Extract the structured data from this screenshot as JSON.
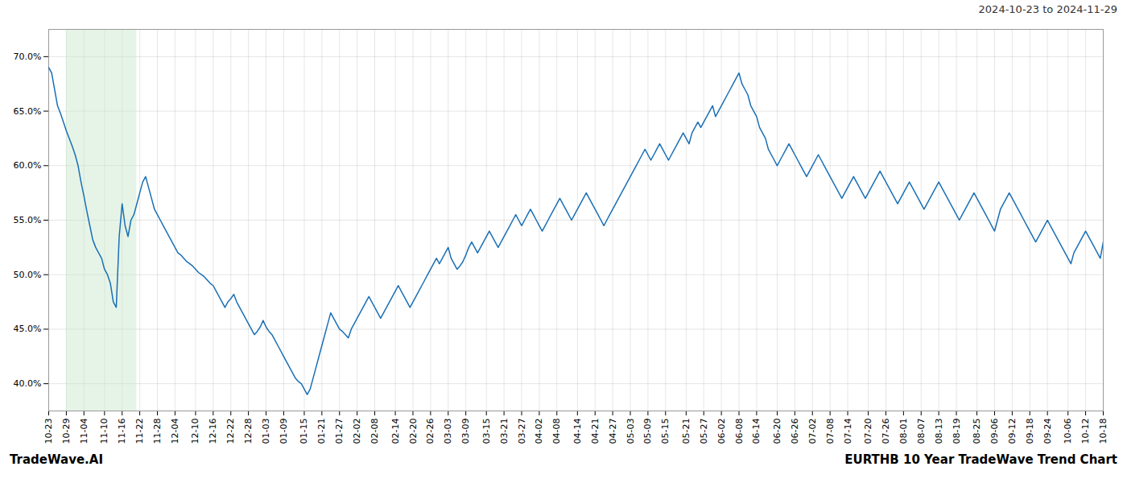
{
  "chart_data": {
    "type": "line",
    "title": "2024-10-23 to 2024-11-29",
    "captions": [
      "TradeWave.AI",
      "EURTHB 10 Year TradeWave Trend Chart"
    ],
    "color": "#1a6fb5",
    "grid": true,
    "ylim": [
      37.5,
      72.5
    ],
    "yticks": [
      {
        "value": 40.0,
        "label": "40.0%"
      },
      {
        "value": 45.0,
        "label": "45.0%"
      },
      {
        "value": 50.0,
        "label": "50.0%"
      },
      {
        "value": 55.0,
        "label": "55.0%"
      },
      {
        "value": 60.0,
        "label": "60.0%"
      },
      {
        "value": 65.0,
        "label": "65.0%"
      },
      {
        "value": 70.0,
        "label": "70.0%"
      }
    ],
    "shade": {
      "range": [
        6,
        30
      ],
      "color": "#c8e6c9"
    },
    "categories": [
      "10-23",
      null,
      null,
      null,
      null,
      null,
      "10-29",
      null,
      null,
      null,
      null,
      null,
      "11-04",
      null,
      null,
      null,
      null,
      null,
      null,
      "11-10",
      null,
      null,
      null,
      null,
      null,
      "11-16",
      null,
      null,
      null,
      null,
      null,
      "11-22",
      null,
      null,
      null,
      null,
      null,
      "11-28",
      null,
      null,
      null,
      null,
      null,
      "12-04",
      null,
      null,
      null,
      null,
      null,
      null,
      "12-10",
      null,
      null,
      null,
      null,
      null,
      "12-16",
      null,
      null,
      null,
      null,
      null,
      "12-22",
      null,
      null,
      null,
      null,
      null,
      "12-28",
      null,
      null,
      null,
      null,
      null,
      "01-03",
      null,
      null,
      null,
      null,
      null,
      "01-09",
      null,
      null,
      null,
      null,
      null,
      null,
      "01-15",
      null,
      null,
      null,
      null,
      null,
      "01-21",
      null,
      null,
      null,
      null,
      null,
      "01-27",
      null,
      null,
      null,
      null,
      null,
      "02-02",
      null,
      null,
      null,
      null,
      null,
      "02-08",
      null,
      null,
      null,
      null,
      null,
      null,
      "02-14",
      null,
      null,
      null,
      null,
      null,
      "02-20",
      null,
      null,
      null,
      null,
      null,
      "02-26",
      null,
      null,
      null,
      null,
      null,
      "03-03",
      null,
      null,
      null,
      null,
      null,
      "03-09",
      null,
      null,
      null,
      null,
      null,
      null,
      "03-15",
      null,
      null,
      null,
      null,
      null,
      "03-21",
      null,
      null,
      null,
      null,
      null,
      "03-27",
      null,
      null,
      null,
      null,
      null,
      "04-02",
      null,
      null,
      null,
      null,
      null,
      "04-08",
      null,
      null,
      null,
      null,
      null,
      null,
      "04-14",
      null,
      null,
      null,
      null,
      null,
      "04-21",
      null,
      null,
      null,
      null,
      null,
      "04-27",
      null,
      null,
      null,
      null,
      null,
      "05-03",
      null,
      null,
      null,
      null,
      null,
      "05-09",
      null,
      null,
      null,
      null,
      null,
      "05-15",
      null,
      null,
      null,
      null,
      null,
      null,
      "05-21",
      null,
      null,
      null,
      null,
      null,
      "05-27",
      null,
      null,
      null,
      null,
      null,
      "06-02",
      null,
      null,
      null,
      null,
      null,
      "06-08",
      null,
      null,
      null,
      null,
      null,
      "06-14",
      null,
      null,
      null,
      null,
      null,
      null,
      "06-20",
      null,
      null,
      null,
      null,
      null,
      "06-26",
      null,
      null,
      null,
      null,
      null,
      "07-02",
      null,
      null,
      null,
      null,
      null,
      "07-08",
      null,
      null,
      null,
      null,
      null,
      "07-14",
      null,
      null,
      null,
      null,
      null,
      null,
      "07-20",
      null,
      null,
      null,
      null,
      null,
      "07-26",
      null,
      null,
      null,
      null,
      null,
      "08-01",
      null,
      null,
      null,
      null,
      null,
      "08-07",
      null,
      null,
      null,
      null,
      null,
      "08-13",
      null,
      null,
      null,
      null,
      null,
      "08-19",
      null,
      null,
      null,
      null,
      null,
      null,
      "08-25",
      null,
      null,
      null,
      null,
      null,
      "09-06",
      null,
      null,
      null,
      null,
      null,
      "09-12",
      null,
      null,
      null,
      null,
      null,
      "09-18",
      null,
      null,
      null,
      null,
      null,
      "09-24",
      null,
      null,
      null,
      null,
      null,
      null,
      "10-06",
      null,
      null,
      null,
      null,
      null,
      "10-12",
      null,
      null,
      null,
      null,
      null,
      "10-18"
    ],
    "values": [
      69.0,
      68.5,
      67.0,
      65.5,
      64.8,
      64.0,
      63.2,
      62.5,
      61.8,
      61.0,
      60.0,
      58.5,
      57.2,
      55.8,
      54.5,
      53.2,
      52.5,
      52.0,
      51.5,
      50.5,
      50.0,
      49.2,
      47.5,
      47.0,
      53.5,
      56.5,
      54.5,
      53.5,
      55.0,
      55.5,
      56.5,
      57.5,
      58.5,
      59.0,
      58.0,
      57.0,
      56.0,
      55.5,
      55.0,
      54.5,
      54.0,
      53.5,
      53.0,
      52.5,
      52.0,
      51.8,
      51.5,
      51.2,
      51.0,
      50.8,
      50.5,
      50.2,
      50.0,
      49.8,
      49.5,
      49.2,
      49.0,
      48.5,
      48.0,
      47.5,
      47.0,
      47.5,
      47.8,
      48.2,
      47.5,
      47.0,
      46.5,
      46.0,
      45.5,
      45.0,
      44.5,
      44.8,
      45.2,
      45.8,
      45.2,
      44.8,
      44.5,
      44.0,
      43.5,
      43.0,
      42.5,
      42.0,
      41.5,
      41.0,
      40.5,
      40.2,
      40.0,
      39.5,
      39.0,
      39.5,
      40.5,
      41.5,
      42.5,
      43.5,
      44.5,
      45.5,
      46.5,
      46.0,
      45.5,
      45.0,
      44.8,
      44.5,
      44.2,
      45.0,
      45.5,
      46.0,
      46.5,
      47.0,
      47.5,
      48.0,
      47.5,
      47.0,
      46.5,
      46.0,
      46.5,
      47.0,
      47.5,
      48.0,
      48.5,
      49.0,
      48.5,
      48.0,
      47.5,
      47.0,
      47.5,
      48.0,
      48.5,
      49.0,
      49.5,
      50.0,
      50.5,
      51.0,
      51.5,
      51.0,
      51.5,
      52.0,
      52.5,
      51.5,
      51.0,
      50.5,
      50.8,
      51.2,
      51.8,
      52.5,
      53.0,
      52.5,
      52.0,
      52.5,
      53.0,
      53.5,
      54.0,
      53.5,
      53.0,
      52.5,
      53.0,
      53.5,
      54.0,
      54.5,
      55.0,
      55.5,
      55.0,
      54.5,
      55.0,
      55.5,
      56.0,
      55.5,
      55.0,
      54.5,
      54.0,
      54.5,
      55.0,
      55.5,
      56.0,
      56.5,
      57.0,
      56.5,
      56.0,
      55.5,
      55.0,
      55.5,
      56.0,
      56.5,
      57.0,
      57.5,
      57.0,
      56.5,
      56.0,
      55.5,
      55.0,
      54.5,
      55.0,
      55.5,
      56.0,
      56.5,
      57.0,
      57.5,
      58.0,
      58.5,
      59.0,
      59.5,
      60.0,
      60.5,
      61.0,
      61.5,
      61.0,
      60.5,
      61.0,
      61.5,
      62.0,
      61.5,
      61.0,
      60.5,
      61.0,
      61.5,
      62.0,
      62.5,
      63.0,
      62.5,
      62.0,
      63.0,
      63.5,
      64.0,
      63.5,
      64.0,
      64.5,
      65.0,
      65.5,
      64.5,
      65.0,
      65.5,
      66.0,
      66.5,
      67.0,
      67.5,
      68.0,
      68.5,
      67.5,
      67.0,
      66.5,
      65.5,
      65.0,
      64.5,
      63.5,
      63.0,
      62.5,
      61.5,
      61.0,
      60.5,
      60.0,
      60.5,
      61.0,
      61.5,
      62.0,
      61.5,
      61.0,
      60.5,
      60.0,
      59.5,
      59.0,
      59.5,
      60.0,
      60.5,
      61.0,
      60.5,
      60.0,
      59.5,
      59.0,
      58.5,
      58.0,
      57.5,
      57.0,
      57.5,
      58.0,
      58.5,
      59.0,
      58.5,
      58.0,
      57.5,
      57.0,
      57.5,
      58.0,
      58.5,
      59.0,
      59.5,
      59.0,
      58.5,
      58.0,
      57.5,
      57.0,
      56.5,
      57.0,
      57.5,
      58.0,
      58.5,
      58.0,
      57.5,
      57.0,
      56.5,
      56.0,
      56.5,
      57.0,
      57.5,
      58.0,
      58.5,
      58.0,
      57.5,
      57.0,
      56.5,
      56.0,
      55.5,
      55.0,
      55.5,
      56.0,
      56.5,
      57.0,
      57.5,
      57.0,
      56.5,
      56.0,
      55.5,
      55.0,
      54.5,
      54.0,
      55.0,
      56.0,
      56.5,
      57.0,
      57.5,
      57.0,
      56.5,
      56.0,
      55.5,
      55.0,
      54.5,
      54.0,
      53.5,
      53.0,
      53.5,
      54.0,
      54.5,
      55.0,
      54.5,
      54.0,
      53.5,
      53.0,
      52.5,
      52.0,
      51.5,
      51.0,
      52.0,
      52.5,
      53.0,
      53.5,
      54.0,
      53.5,
      53.0,
      52.5,
      52.0,
      51.5,
      53.0
    ]
  }
}
